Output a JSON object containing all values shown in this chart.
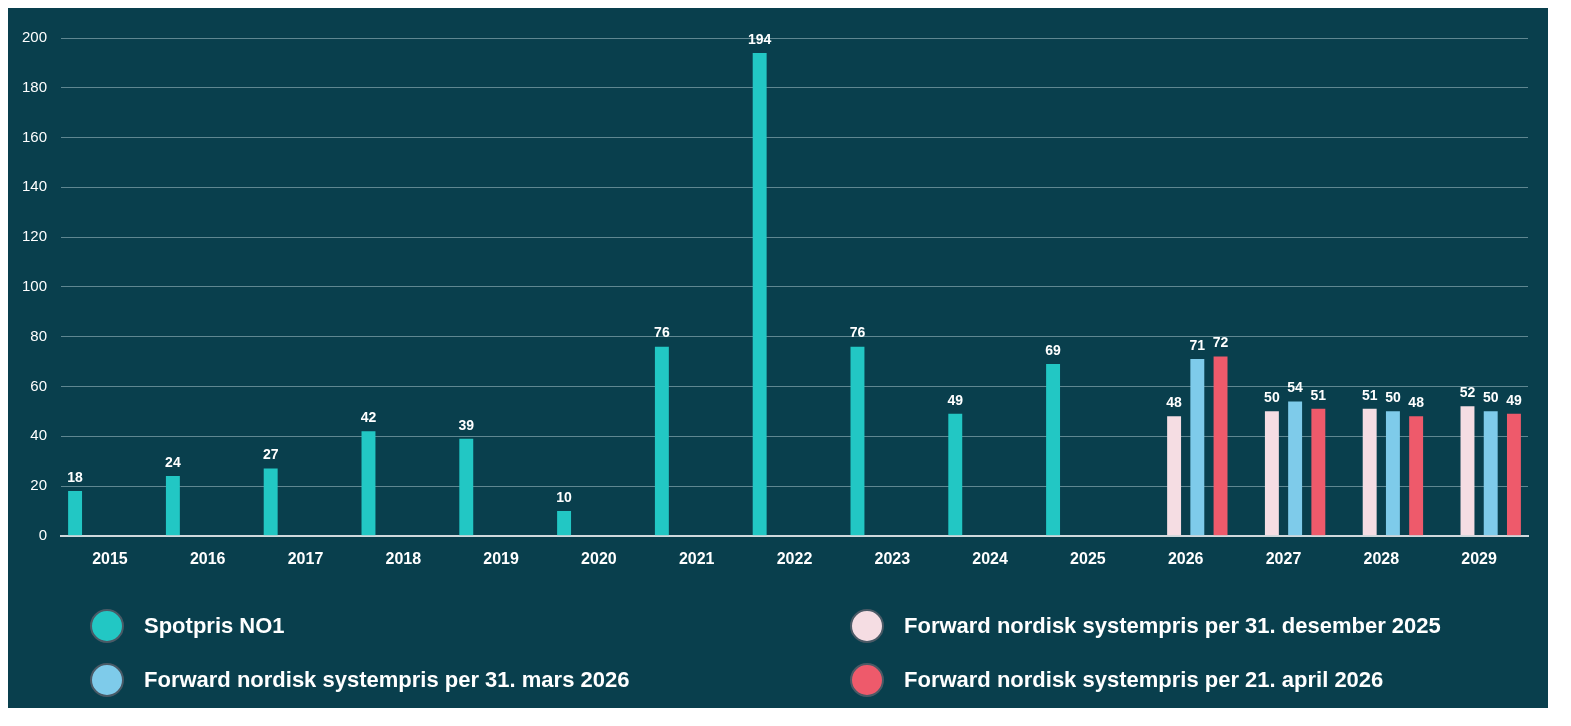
{
  "chart_data": {
    "type": "bar",
    "categories": [
      "2015",
      "2016",
      "2017",
      "2018",
      "2019",
      "2020",
      "2021",
      "2022",
      "2023",
      "2024",
      "2025",
      "2026",
      "2027",
      "2028",
      "2029"
    ],
    "series": [
      {
        "name": "Spotpris NO1",
        "color": "#22c7c4",
        "values": [
          18,
          24,
          27,
          42,
          39,
          10,
          76,
          194,
          76,
          49,
          69,
          null,
          null,
          null,
          null
        ]
      },
      {
        "name": "Forward nordisk systempris per 31. desember 2025",
        "color": "#f5dde3",
        "values": [
          null,
          null,
          null,
          null,
          null,
          null,
          null,
          null,
          null,
          null,
          null,
          48,
          50,
          51,
          52
        ]
      },
      {
        "name": "Forward nordisk systempris per 31. mars 2026",
        "color": "#7ecbea",
        "values": [
          null,
          null,
          null,
          null,
          null,
          null,
          null,
          null,
          null,
          null,
          null,
          71,
          54,
          50,
          50
        ]
      },
      {
        "name": "Forward nordisk systempris per 21. april 2026",
        "color": "#ee5a6b",
        "values": [
          null,
          null,
          null,
          null,
          null,
          null,
          null,
          null,
          null,
          null,
          null,
          72,
          51,
          48,
          49
        ]
      }
    ],
    "ylim": [
      0,
      200
    ],
    "yticks": [
      0,
      20,
      40,
      60,
      80,
      100,
      120,
      140,
      160,
      180,
      200
    ],
    "grid": "y",
    "data_labels": true,
    "legend": "bottom"
  }
}
